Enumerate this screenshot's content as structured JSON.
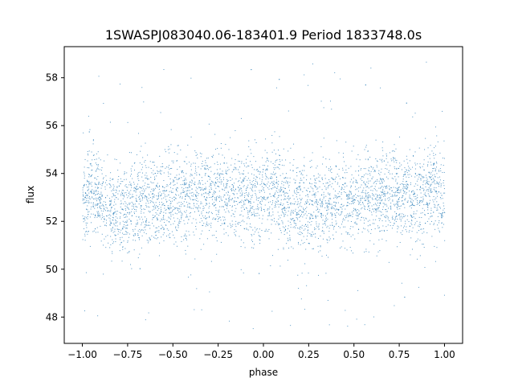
{
  "chart_data": {
    "type": "scatter",
    "title": "1SWASPJ083040.06-183401.9 Period 1833748.0s",
    "xlabel": "phase",
    "ylabel": "flux",
    "xlim": [
      -1.1,
      1.1
    ],
    "ylim": [
      46.9,
      59.3
    ],
    "x_ticks": [
      -1.0,
      -0.75,
      -0.5,
      -0.25,
      0.0,
      0.25,
      0.5,
      0.75,
      1.0
    ],
    "x_tick_labels": [
      "−1.00",
      "−0.75",
      "−0.50",
      "−0.25",
      "0.00",
      "0.25",
      "0.50",
      "0.75",
      "1.00"
    ],
    "y_ticks": [
      48,
      50,
      52,
      54,
      56,
      58
    ],
    "y_tick_labels": [
      "48",
      "50",
      "52",
      "54",
      "56",
      "58"
    ],
    "grid": false,
    "legend": "none",
    "marker_color": "#1f77b4",
    "series": [
      {
        "phase_range": [
          -1.0,
          1.0
        ],
        "median_flux": [
          [
            -1.0,
            52.6
          ],
          [
            -0.95,
            53.4
          ],
          [
            -0.9,
            53.0
          ],
          [
            -0.85,
            52.5
          ],
          [
            -0.8,
            52.4
          ],
          [
            -0.75,
            52.6
          ],
          [
            -0.7,
            52.8
          ],
          [
            -0.65,
            52.9
          ],
          [
            -0.6,
            52.8
          ],
          [
            -0.55,
            52.8
          ],
          [
            -0.5,
            52.9
          ],
          [
            -0.45,
            53.0
          ],
          [
            -0.4,
            53.1
          ],
          [
            -0.35,
            53.2
          ],
          [
            -0.3,
            53.1
          ],
          [
            -0.25,
            53.2
          ],
          [
            -0.2,
            53.1
          ],
          [
            -0.15,
            53.0
          ],
          [
            -0.1,
            53.1
          ],
          [
            -0.05,
            53.2
          ],
          [
            0.0,
            52.8
          ],
          [
            0.05,
            53.2
          ],
          [
            0.1,
            52.9
          ],
          [
            0.15,
            52.6
          ],
          [
            0.2,
            52.5
          ],
          [
            0.25,
            52.7
          ],
          [
            0.3,
            52.8
          ],
          [
            0.35,
            52.9
          ],
          [
            0.4,
            52.9
          ],
          [
            0.45,
            52.8
          ],
          [
            0.5,
            52.8
          ],
          [
            0.55,
            52.9
          ],
          [
            0.6,
            53.0
          ],
          [
            0.65,
            53.2
          ],
          [
            0.7,
            53.1
          ],
          [
            0.75,
            53.1
          ],
          [
            0.8,
            53.0
          ],
          [
            0.85,
            53.0
          ],
          [
            0.9,
            53.2
          ],
          [
            0.95,
            53.5
          ],
          [
            1.0,
            52.8
          ]
        ],
        "scatter_spread": 0.9,
        "outlier_range": [
          47.5,
          58.7
        ]
      }
    ]
  }
}
